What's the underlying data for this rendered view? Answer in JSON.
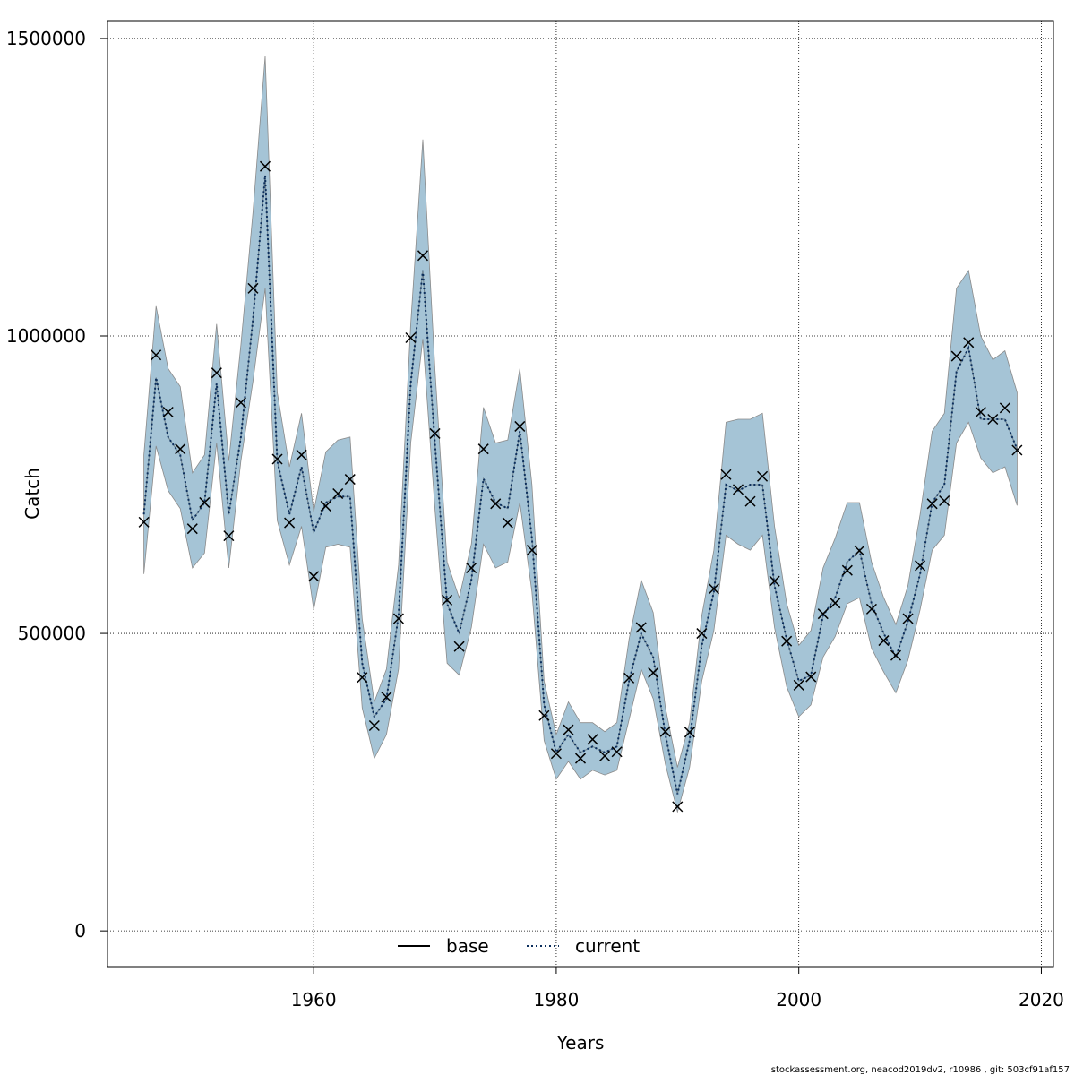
{
  "chart_data": {
    "type": "line",
    "title": "",
    "xlabel": "Years",
    "ylabel": "Catch",
    "xlim": [
      1943,
      2021
    ],
    "ylim": [
      -60000,
      1530000
    ],
    "x_ticks": [
      1960,
      1980,
      2000,
      2020
    ],
    "y_ticks": [
      0,
      500000,
      1000000,
      1500000
    ],
    "grid": true,
    "legend_placement": "bottom-center",
    "colors": {
      "band": "#a5c4d6",
      "band_edge": "#8a8a8a",
      "current_line": "#0b2e5c",
      "observed_marker": "#000000",
      "grid": "#000000"
    },
    "years": [
      1946,
      1947,
      1948,
      1949,
      1950,
      1951,
      1952,
      1953,
      1954,
      1955,
      1956,
      1957,
      1958,
      1959,
      1960,
      1961,
      1962,
      1963,
      1964,
      1965,
      1966,
      1967,
      1968,
      1969,
      1970,
      1971,
      1972,
      1973,
      1974,
      1975,
      1976,
      1977,
      1978,
      1979,
      1980,
      1981,
      1982,
      1983,
      1984,
      1985,
      1986,
      1987,
      1988,
      1989,
      1990,
      1991,
      1992,
      1993,
      1994,
      1995,
      1996,
      1997,
      1998,
      1999,
      2000,
      2001,
      2002,
      2003,
      2004,
      2005,
      2006,
      2007,
      2008,
      2009,
      2010,
      2011,
      2012,
      2013,
      2014,
      2015,
      2016,
      2017,
      2018
    ],
    "series": [
      {
        "name": "current",
        "style": "dotted",
        "values": [
          700000,
          930000,
          830000,
          800000,
          690000,
          720000,
          920000,
          700000,
          830000,
          1030000,
          1270000,
          790000,
          700000,
          780000,
          670000,
          720000,
          730000,
          730000,
          450000,
          360000,
          390000,
          530000,
          920000,
          1110000,
          820000,
          550000,
          500000,
          590000,
          760000,
          720000,
          710000,
          840000,
          660000,
          380000,
          300000,
          330000,
          300000,
          310000,
          300000,
          310000,
          420000,
          500000,
          460000,
          330000,
          230000,
          320000,
          480000,
          570000,
          750000,
          740000,
          750000,
          750000,
          580000,
          490000,
          420000,
          430000,
          530000,
          560000,
          620000,
          640000,
          550000,
          500000,
          460000,
          520000,
          600000,
          720000,
          750000,
          940000,
          980000,
          860000,
          860000,
          860000,
          810000
        ]
      },
      {
        "name": "base",
        "style": "solid",
        "values": [
          700000,
          930000,
          830000,
          800000,
          690000,
          720000,
          920000,
          700000,
          830000,
          1030000,
          1270000,
          790000,
          700000,
          780000,
          670000,
          720000,
          730000,
          730000,
          450000,
          360000,
          390000,
          530000,
          920000,
          1110000,
          820000,
          550000,
          500000,
          590000,
          760000,
          720000,
          710000,
          840000,
          660000,
          380000,
          300000,
          330000,
          300000,
          310000,
          300000,
          310000,
          420000,
          500000,
          460000,
          330000,
          230000,
          320000,
          480000,
          570000,
          750000,
          740000,
          750000,
          750000,
          580000,
          490000,
          420000,
          430000,
          530000,
          560000,
          620000,
          640000,
          550000,
          500000,
          460000,
          520000,
          600000,
          720000,
          750000,
          940000,
          980000,
          860000,
          860000,
          860000,
          810000
        ]
      },
      {
        "name": "observed",
        "style": "markers",
        "values": [
          687000,
          968000,
          872000,
          810000,
          676000,
          720000,
          938000,
          664000,
          888000,
          1080000,
          1285000,
          793000,
          686000,
          800000,
          596000,
          714000,
          735000,
          759000,
          426000,
          345000,
          393000,
          525000,
          997000,
          1135000,
          836000,
          556000,
          478000,
          610000,
          810000,
          718000,
          686000,
          848000,
          640000,
          362000,
          298000,
          338000,
          290000,
          322000,
          294000,
          301000,
          425000,
          510000,
          434000,
          335000,
          209000,
          334000,
          500000,
          575000,
          767000,
          742000,
          722000,
          764000,
          588000,
          487000,
          413000,
          427000,
          533000,
          551000,
          606000,
          639000,
          541000,
          488000,
          463000,
          525000,
          614000,
          718000,
          723000,
          966000,
          989000,
          872000,
          860000,
          879000,
          808000
        ]
      }
    ],
    "band_upper": [
      800000,
      1050000,
      945000,
      915000,
      770000,
      800000,
      1020000,
      790000,
      985000,
      1210000,
      1470000,
      905000,
      780000,
      870000,
      705000,
      805000,
      825000,
      830000,
      525000,
      385000,
      440000,
      615000,
      1020000,
      1330000,
      945000,
      620000,
      560000,
      650000,
      880000,
      820000,
      825000,
      945000,
      750000,
      420000,
      330000,
      385000,
      350000,
      350000,
      335000,
      350000,
      490000,
      590000,
      535000,
      375000,
      275000,
      350000,
      530000,
      640000,
      855000,
      860000,
      860000,
      870000,
      680000,
      550000,
      480000,
      505000,
      610000,
      660000,
      720000,
      720000,
      620000,
      560000,
      515000,
      580000,
      700000,
      840000,
      870000,
      1080000,
      1110000,
      1000000,
      960000,
      975000,
      905000
    ],
    "band_lower": [
      600000,
      815000,
      740000,
      710000,
      610000,
      635000,
      820000,
      610000,
      790000,
      925000,
      1080000,
      690000,
      615000,
      680000,
      540000,
      645000,
      650000,
      645000,
      375000,
      290000,
      330000,
      440000,
      820000,
      995000,
      710000,
      450000,
      430000,
      510000,
      650000,
      610000,
      620000,
      720000,
      570000,
      320000,
      255000,
      285000,
      255000,
      270000,
      262000,
      270000,
      355000,
      440000,
      390000,
      280000,
      200000,
      275000,
      420000,
      505000,
      665000,
      650000,
      640000,
      665000,
      510000,
      410000,
      360000,
      380000,
      460000,
      495000,
      550000,
      560000,
      475000,
      435000,
      400000,
      455000,
      540000,
      640000,
      665000,
      820000,
      855000,
      795000,
      770000,
      780000,
      715000
    ],
    "legend": [
      {
        "label": "base",
        "style": "solid"
      },
      {
        "label": "current",
        "style": "dotted"
      }
    ]
  },
  "footer_text": "stockassessment.org, neacod2019dv2, r10986 , git: 503cf91af157"
}
